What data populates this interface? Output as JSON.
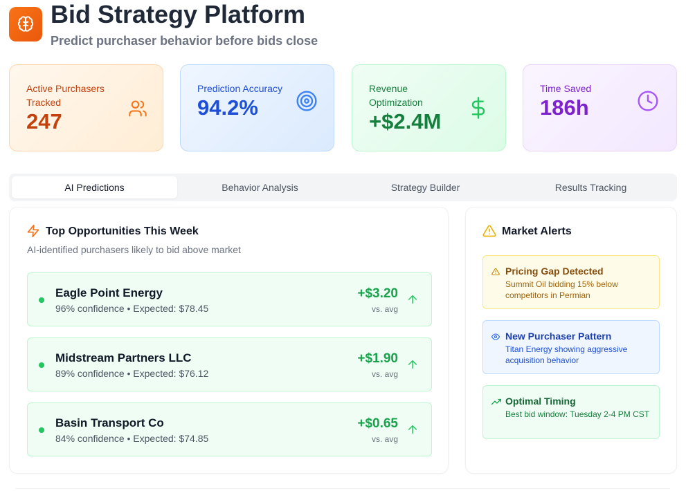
{
  "header": {
    "title": "Bid Strategy Platform",
    "subtitle": "Predict purchaser behavior before bids close",
    "logo_icon": "brain-icon"
  },
  "stats": [
    {
      "label": "Active Purchasers Tracked",
      "value": "247",
      "icon": "users-icon",
      "color": "#c2410c"
    },
    {
      "label": "Prediction Accuracy",
      "value": "94.2%",
      "icon": "target-icon",
      "color": "#1d4ed8"
    },
    {
      "label": "Revenue Optimization",
      "value": "+$2.4M",
      "icon": "dollar-icon",
      "color": "#15803d"
    },
    {
      "label": "Time Saved",
      "value": "186h",
      "icon": "clock-icon",
      "color": "#7e22ce"
    }
  ],
  "tabs": [
    {
      "label": "AI Predictions",
      "active": true
    },
    {
      "label": "Behavior Analysis",
      "active": false
    },
    {
      "label": "Strategy Builder",
      "active": false
    },
    {
      "label": "Results Tracking",
      "active": false
    }
  ],
  "opportunities": {
    "title": "Top Opportunities This Week",
    "description": "AI-identified purchasers likely to bid above market",
    "items": [
      {
        "name": "Eagle Point Energy",
        "meta": "96% confidence • Expected: $78.45",
        "delta": "+$3.20",
        "vs": "vs. avg"
      },
      {
        "name": "Midstream Partners LLC",
        "meta": "89% confidence • Expected: $76.12",
        "delta": "+$1.90",
        "vs": "vs. avg"
      },
      {
        "name": "Basin Transport Co",
        "meta": "84% confidence • Expected: $74.85",
        "delta": "+$0.65",
        "vs": "vs. avg"
      }
    ]
  },
  "alerts": {
    "title": "Market Alerts",
    "items": [
      {
        "title": "Pricing Gap Detected",
        "text": "Summit Oil bidding 15% below competitors in Permian",
        "icon": "warning-icon"
      },
      {
        "title": "New Purchaser Pattern",
        "text": "Titan Energy showing aggressive acquisition behavior",
        "icon": "eye-icon"
      },
      {
        "title": "Optimal Timing",
        "text": "Best bid window: Tuesday 2-4 PM CST",
        "icon": "trending-up-icon"
      }
    ]
  }
}
